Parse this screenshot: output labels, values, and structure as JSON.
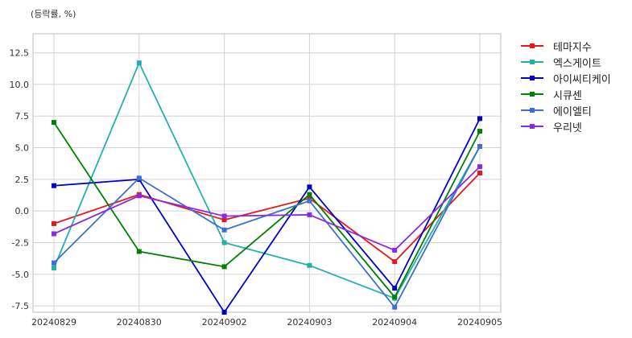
{
  "chart_data": {
    "type": "line",
    "title": "",
    "unit_label": "(등락률, %)",
    "xlabel": "",
    "ylabel": "",
    "categories": [
      "20240829",
      "20240830",
      "20240902",
      "20240903",
      "20240904",
      "20240905"
    ],
    "ylim": [
      -8.0,
      14.0
    ],
    "yticks": [
      -7.5,
      -5.0,
      -2.5,
      0.0,
      2.5,
      5.0,
      7.5,
      10.0,
      12.5
    ],
    "ytick_labels": [
      "-7.5",
      "-5.0",
      "-2.5",
      "0.0",
      "2.5",
      "5.0",
      "7.5",
      "10.0",
      "12.5"
    ],
    "grid": true,
    "legend_position": "outside-right",
    "series": [
      {
        "name": "테마지수",
        "color": "#e31a1c",
        "values": [
          -1.0,
          1.3,
          -0.7,
          1.0,
          -4.0,
          3.0
        ]
      },
      {
        "name": "엑스게이트",
        "color": "#20b2aa",
        "values": [
          -4.5,
          11.7,
          -2.5,
          -4.3,
          -6.9,
          5.1
        ]
      },
      {
        "name": "아이씨티케이",
        "color": "#0000cd",
        "values": [
          2.0,
          2.5,
          -8.0,
          1.9,
          -6.1,
          7.3
        ]
      },
      {
        "name": "시큐센",
        "color": "#008000",
        "values": [
          7.0,
          -3.2,
          -4.4,
          1.3,
          -6.8,
          6.3
        ]
      },
      {
        "name": "에이엘티",
        "color": "#3c6fd6",
        "values": [
          -4.1,
          2.6,
          -1.5,
          0.8,
          -7.6,
          5.1
        ]
      },
      {
        "name": "우리넷",
        "color": "#8a2be2",
        "values": [
          -1.8,
          1.2,
          -0.4,
          -0.3,
          -3.1,
          3.5
        ]
      }
    ]
  }
}
